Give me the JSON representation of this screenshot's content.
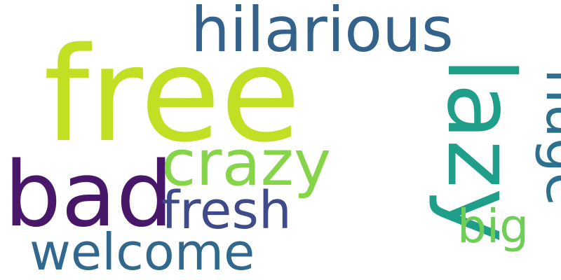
{
  "word_cloud": {
    "background": "#ffffff",
    "words": [
      {
        "id": "free",
        "text": "free",
        "color": "#c2df23",
        "orientation": "horizontal"
      },
      {
        "id": "hilarious",
        "text": "hilarious",
        "color": "#33638d",
        "orientation": "horizontal"
      },
      {
        "id": "lazy",
        "text": "lazy",
        "color": "#1f9e89",
        "orientation": "vertical"
      },
      {
        "id": "bad",
        "text": "bad",
        "color": "#481769",
        "orientation": "horizontal"
      },
      {
        "id": "crazy",
        "text": "crazy",
        "color": "#86d549",
        "orientation": "horizontal"
      },
      {
        "id": "huge",
        "text": "huge",
        "color": "#2d708e",
        "orientation": "vertical"
      },
      {
        "id": "fresh",
        "text": "fresh",
        "color": "#3e4a89",
        "orientation": "horizontal"
      },
      {
        "id": "big",
        "text": "big",
        "color": "#6ece58",
        "orientation": "horizontal"
      },
      {
        "id": "welcome",
        "text": "welcome",
        "color": "#31688e",
        "orientation": "horizontal"
      }
    ]
  }
}
